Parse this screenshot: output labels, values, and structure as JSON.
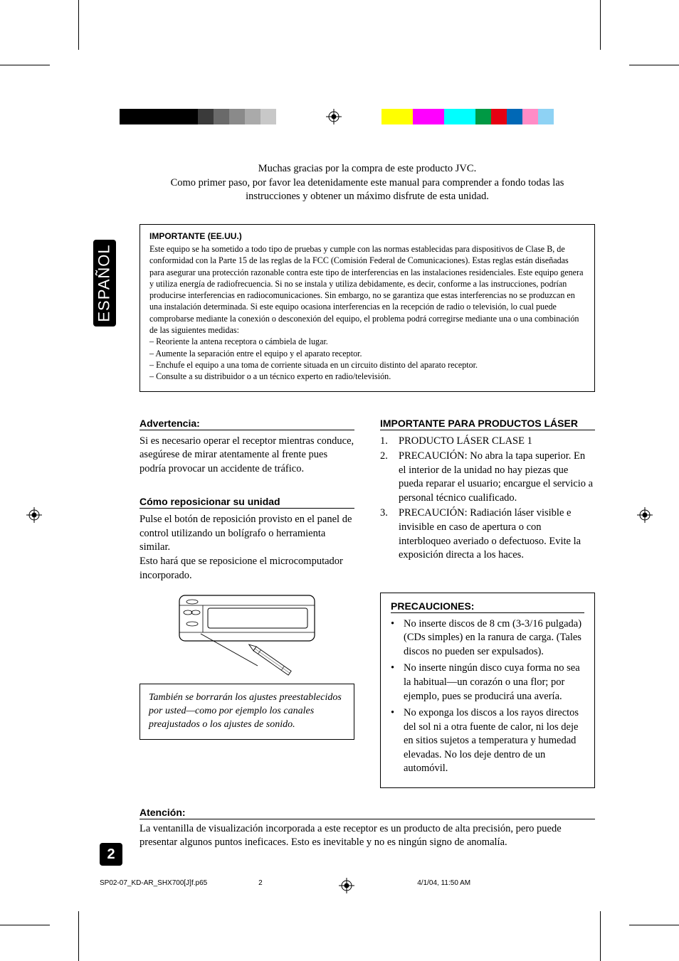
{
  "colors": {
    "left_bar": [
      "#000000",
      "#000000",
      "#000000",
      "#3a3a3a",
      "#6a6a6a",
      "#8a8a8a",
      "#aaaaaa",
      "#c8c8c8",
      "#ffffff",
      "#ffffff"
    ],
    "left_bar_widths": [
      66,
      22,
      22,
      22,
      22,
      22,
      22,
      22,
      22,
      22
    ],
    "right_bar": [
      "#ffff00",
      "#ff00ff",
      "#00ffff",
      "#009944",
      "#e50012",
      "#0068b6",
      "#ff8cc6",
      "#8ed2f4"
    ],
    "right_bar_widths": [
      44,
      44,
      44,
      22,
      22,
      22,
      22,
      22
    ],
    "text": "#000000",
    "bg": "#ffffff"
  },
  "side_tab": "ESPAÑOL",
  "intro": {
    "l1": "Muchas gracias por la compra de este producto JVC.",
    "l2": "Como primer paso, por favor lea detenidamente este manual para comprender a fondo todas las",
    "l3": "instrucciones y obtener un máximo disfrute de esta unidad."
  },
  "importante": {
    "title": "IMPORTANTE (EE.UU.)",
    "p1": "Este equipo se ha sometido a todo tipo de pruebas y cumple con las normas establecidas para dispositivos de Clase B, de conformidad con la Parte 15 de las reglas de la FCC (Comisión Federal de Comunicaciones). Estas reglas están diseñadas para asegurar una protección razonable contra este tipo de interferencias en las instalaciones residenciales. Este equipo genera y utiliza energía de radiofrecuencia. Si no se instala y utiliza debidamente, es decir, conforme a las instrucciones, podrían producirse interferencias en radiocomunicaciones. Sin embargo, no se garantiza que estas interferencias no se produzcan en una instalación determinada. Si este equipo ocasiona interferencias en la recepción de radio o televisión, lo cual puede comprobarse mediante la conexión o desconexión del equipo, el problema podrá corregirse mediante una o una combinación de las siguientes medidas:",
    "b1": "– Reoriente la antena receptora o cámbiela de lugar.",
    "b2": "– Aumente la separación entre el equipo y el aparato receptor.",
    "b3": "– Enchufe el equipo a una toma de corriente situada en un circuito distinto del aparato receptor.",
    "b4": "– Consulte a su distribuidor o a un técnico experto en radio/televisión."
  },
  "advertencia": {
    "title": "Advertencia:",
    "body": "Si es necesario operar el receptor mientras conduce, asegúrese de mirar atentamente al frente pues podría provocar un accidente de tráfico."
  },
  "reposicionar": {
    "title": "Cómo reposicionar su unidad",
    "p1": "Pulse el botón de reposición provisto en el panel de control utilizando un bolígrafo o herramienta similar.",
    "p2": "Esto hará que se reposicione el microcomputador incorporado.",
    "note": "También se borrarán los ajustes preestablecidos por usted—como por ejemplo los canales preajustados o los ajustes de sonido."
  },
  "laser": {
    "title": "IMPORTANTE PARA PRODUCTOS LÁSER",
    "i1n": "1.",
    "i1": "PRODUCTO LÁSER CLASE 1",
    "i2n": "2.",
    "i2": "PRECAUCIÓN: No abra la tapa superior. En el interior de la unidad no hay piezas que pueda reparar el usuario; encargue el servicio a personal técnico cualificado.",
    "i3n": "3.",
    "i3": "PRECAUCIÓN: Radiación láser visible e invisible en caso de apertura o con interbloqueo averiado o defectuoso. Evite la exposición directa a los haces."
  },
  "precauciones": {
    "title": "PRECAUCIONES:",
    "b1": "No inserte discos de 8 cm (3-3/16 pulgada) (CDs simples) en la ranura de carga. (Tales discos no pueden ser expulsados).",
    "b2": "No inserte ningún disco cuya forma no sea la habitual—un corazón o una flor; por ejemplo, pues se producirá una avería.",
    "b3": "No exponga los discos a los rayos directos del sol ni a otra fuente de calor, ni los deje en sitios sujetos a temperatura y humedad elevadas. No los deje dentro de un automóvil."
  },
  "atencion": {
    "title": "Atención:",
    "body": "La ventanilla de visualización incorporada a este receptor es un producto de alta precisión, pero puede presentar algunos puntos ineficaces. Esto es inevitable y no es ningún signo de anomalía."
  },
  "page_number": "2",
  "footer": {
    "file": "SP02-07_KD-AR_SHX700[J]f.p65",
    "page": "2",
    "datetime": "4/1/04, 11:50 AM"
  }
}
